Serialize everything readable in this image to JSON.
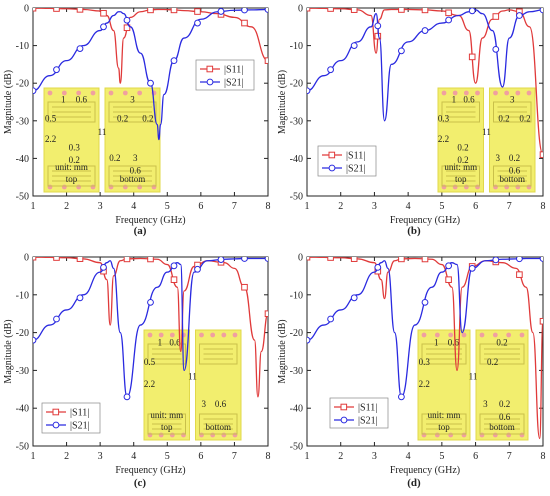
{
  "colors": {
    "s11": "#e03a3a",
    "s21": "#2a2ae0",
    "pcb": "#f2ee6e",
    "pcb_dark": "#e0d84a",
    "pad": "#f0a0a0"
  },
  "inset_labels": {
    "unit": "unit: mm",
    "top": "top",
    "bottom": "bottom",
    "length": "11"
  },
  "chart_data": [
    {
      "panel": "(a)",
      "type": "line",
      "xlabel": "Frequency (GHz)",
      "ylabel": "Magnitude (dB)",
      "xlim": [
        1,
        8
      ],
      "ylim": [
        -50,
        0
      ],
      "xticks": [
        1,
        2,
        3,
        4,
        5,
        6,
        7,
        8
      ],
      "yticks": [
        0,
        -10,
        -20,
        -30,
        -40,
        -50
      ],
      "legend": "top-right",
      "grid": false,
      "x": [
        1,
        1.5,
        2,
        2.5,
        3,
        3.2,
        3.4,
        3.55,
        3.6,
        3.7,
        3.9,
        4.2,
        4.5,
        4.7,
        4.75,
        4.8,
        4.9,
        5.2,
        5.5,
        6,
        6.5,
        7,
        7.5,
        8
      ],
      "series": [
        {
          "name": "|S11|",
          "values": [
            -0.05,
            -0.1,
            -0.2,
            -0.4,
            -0.8,
            -2,
            -6,
            -16,
            -20,
            -8,
            -2.5,
            -1,
            -0.5,
            -0.4,
            -0.4,
            -0.4,
            -0.4,
            -0.5,
            -0.7,
            -1,
            -1.5,
            -2.5,
            -5,
            -14
          ]
        },
        {
          "name": "|S21|",
          "values": [
            -22,
            -18,
            -14,
            -10,
            -6,
            -4,
            -2,
            -1,
            -1,
            -1.5,
            -5,
            -12,
            -20,
            -31,
            -35,
            -31,
            -23,
            -14,
            -8,
            -3,
            -1,
            -0.6,
            -0.5,
            -0.4
          ]
        }
      ],
      "inset_dims": {
        "top": [
          "1",
          "0.6",
          "0.5",
          "2.2",
          "0.3",
          "0.2"
        ],
        "bottom": [
          "3",
          "0.2",
          "0.2",
          "0.2",
          "3",
          "0.6"
        ]
      }
    },
    {
      "panel": "(b)",
      "type": "line",
      "xlabel": "Frequency (GHz)",
      "ylabel": "Magnitude (dB)",
      "xlim": [
        1,
        8
      ],
      "ylim": [
        -50,
        0
      ],
      "xticks": [
        1,
        2,
        3,
        4,
        5,
        6,
        7,
        8
      ],
      "yticks": [
        0,
        -10,
        -20,
        -30,
        -40,
        -50
      ],
      "legend": "center-left",
      "grid": false,
      "x": [
        1,
        1.5,
        2,
        2.5,
        2.9,
        3.05,
        3.15,
        3.3,
        3.5,
        4,
        4.5,
        5,
        5.5,
        5.8,
        6,
        6.2,
        6.5,
        6.8,
        7,
        7.3,
        7.6,
        8
      ],
      "series": [
        {
          "name": "|S11|",
          "values": [
            -0.05,
            -0.1,
            -0.2,
            -0.5,
            -2,
            -12,
            -3,
            -0.5,
            -0.4,
            -0.4,
            -0.5,
            -0.8,
            -2,
            -6,
            -20,
            -8,
            -3,
            -0.8,
            -0.5,
            -1,
            -5,
            -39
          ]
        },
        {
          "name": "|S21|",
          "values": [
            -22,
            -18,
            -14,
            -9,
            -5,
            -1.5,
            -8,
            -30,
            -15,
            -9,
            -6,
            -4,
            -2,
            -1,
            -0.5,
            -1.5,
            -6,
            -21,
            -8,
            -2,
            -1,
            -0.5
          ]
        }
      ],
      "inset_dims": {
        "top": [
          "1",
          "0.6",
          "0.3",
          "2.2",
          "0.2",
          "0.2"
        ],
        "bottom": [
          "3",
          "0.2",
          "0.2",
          "3",
          "0.2",
          "0.6"
        ]
      }
    },
    {
      "panel": "(c)",
      "type": "line",
      "xlabel": "Frequency (GHz)",
      "ylabel": "Magnitude (dB)",
      "xlim": [
        1,
        8
      ],
      "ylim": [
        -50,
        0
      ],
      "xticks": [
        1,
        2,
        3,
        4,
        5,
        6,
        7,
        8
      ],
      "yticks": [
        0,
        -10,
        -20,
        -30,
        -40,
        -50
      ],
      "legend": "bottom-left",
      "grid": false,
      "x": [
        1,
        1.5,
        2,
        2.5,
        3,
        3.2,
        3.3,
        3.4,
        3.6,
        3.8,
        4.2,
        4.7,
        5,
        5.3,
        5.4,
        5.5,
        5.8,
        6.2,
        6.7,
        7,
        7.3,
        7.6,
        7.7,
        7.8,
        8
      ],
      "series": [
        {
          "name": "|S11|",
          "values": [
            -0.05,
            -0.1,
            -0.2,
            -0.5,
            -1.5,
            -6,
            -18,
            -5,
            -1,
            -0.5,
            -0.4,
            -0.6,
            -2,
            -8,
            -25,
            -9,
            -2.5,
            -1,
            -1.5,
            -3,
            -8,
            -22,
            -37,
            -25,
            -15
          ]
        },
        {
          "name": "|S21|",
          "values": [
            -22,
            -18,
            -14,
            -10,
            -4,
            -1.5,
            -1,
            -3,
            -20,
            -37,
            -18,
            -8,
            -4,
            -1.5,
            -2,
            -30,
            -4,
            -1,
            -0.6,
            -0.5,
            -0.4,
            -0.4,
            -0.4,
            -0.4,
            -0.4
          ]
        }
      ],
      "inset_dims": {
        "top": [
          "1",
          "0.6",
          "0.5",
          "2.2",
          "",
          ""
        ],
        "bottom": [
          "",
          "",
          "",
          "3",
          "0.6",
          ""
        ]
      }
    },
    {
      "panel": "(d)",
      "type": "line",
      "xlabel": "Frequency (GHz)",
      "ylabel": "Magnitude (dB)",
      "xlim": [
        1,
        8
      ],
      "ylim": [
        -50,
        0
      ],
      "xticks": [
        1,
        2,
        3,
        4,
        5,
        6,
        7,
        8
      ],
      "yticks": [
        0,
        -10,
        -20,
        -30,
        -40,
        -50
      ],
      "legend": "bottom-left",
      "grid": false,
      "x": [
        1,
        1.5,
        2,
        2.5,
        3,
        3.2,
        3.3,
        3.4,
        3.6,
        3.8,
        4.2,
        4.7,
        5,
        5.3,
        5.45,
        5.6,
        5.9,
        6.3,
        6.8,
        7.2,
        7.5,
        7.7,
        7.9,
        8
      ],
      "series": [
        {
          "name": "|S11|",
          "values": [
            -0.05,
            -0.1,
            -0.2,
            -0.5,
            -1.5,
            -6,
            -11,
            -4,
            -1,
            -0.5,
            -0.4,
            -0.6,
            -2,
            -8,
            -30,
            -8,
            -2.5,
            -1,
            -1.5,
            -3,
            -8,
            -20,
            -48,
            -17
          ]
        },
        {
          "name": "|S21|",
          "values": [
            -22,
            -18,
            -14,
            -10,
            -4,
            -1.5,
            -1,
            -3,
            -20,
            -37,
            -18,
            -8,
            -4,
            -1.5,
            -2,
            -20,
            -3,
            -1,
            -0.6,
            -0.5,
            -0.4,
            -0.4,
            -0.4,
            -0.4
          ]
        }
      ],
      "inset_dims": {
        "top": [
          "1",
          "0.6",
          "0.3",
          "2.2",
          "",
          ""
        ],
        "bottom": [
          "0.2",
          "0.2",
          "",
          "3",
          "0.2",
          "0.6"
        ]
      }
    }
  ]
}
